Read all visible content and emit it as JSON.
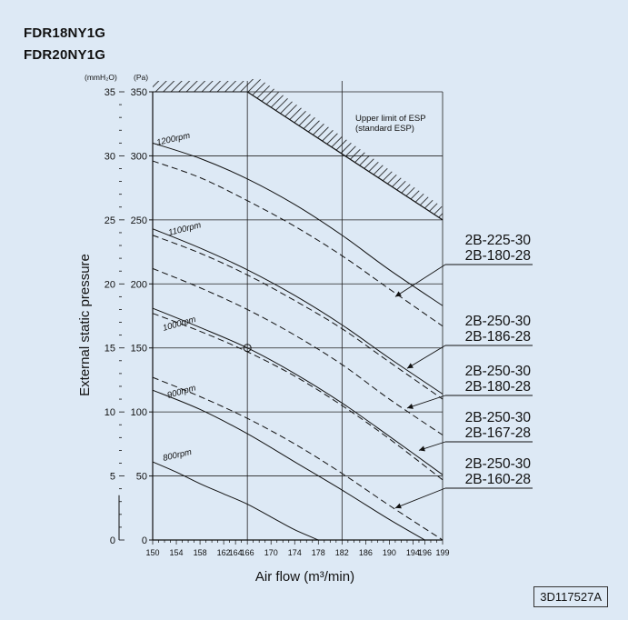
{
  "models": [
    "FDR18NY1G",
    "FDR20NY1G"
  ],
  "drawing_no": "3D117527A",
  "chart_data": {
    "type": "line",
    "xlabel": "Air flow (m³/min)",
    "ylabel": "External static pressure",
    "y_unit_mmH2O": "(mmH₂O)",
    "y_unit_Pa": "(Pa)",
    "xlim": [
      150,
      199
    ],
    "ylim_Pa": [
      0,
      350
    ],
    "ylim_mmH2O": [
      0,
      35
    ],
    "x_ticks": [
      150,
      154,
      158,
      162,
      164,
      166,
      170,
      174,
      178,
      182,
      186,
      190,
      194,
      196,
      199
    ],
    "x_ticks_major": [
      166,
      182
    ],
    "y_ticks_Pa": [
      0,
      50,
      100,
      150,
      200,
      250,
      300,
      350
    ],
    "y_ticks_mmH2O": [
      0,
      5,
      10,
      15,
      20,
      25,
      30,
      35
    ],
    "grid": true,
    "upper_limit": {
      "label_lines": [
        "Upper limit of ESP",
        "(standard ESP)"
      ],
      "points": [
        [
          166,
          350
        ],
        [
          199,
          250
        ]
      ],
      "hatched_top_left": [
        [
          150,
          350
        ],
        [
          166,
          350
        ]
      ]
    },
    "series": [
      {
        "name": "1200rpm",
        "style": "solid",
        "x": [
          150,
          158,
          166,
          174,
          182,
          190,
          199
        ],
        "y": [
          310,
          298,
          282,
          262,
          238,
          211,
          183
        ]
      },
      {
        "style": "dashed",
        "x": [
          150,
          158,
          166,
          174,
          182,
          190,
          199
        ],
        "y": [
          296,
          283,
          265,
          245,
          222,
          196,
          167
        ]
      },
      {
        "name": "1100rpm",
        "style": "solid",
        "x": [
          150,
          158,
          166,
          174,
          182,
          190,
          199
        ],
        "y": [
          243,
          228,
          211,
          191,
          168,
          142,
          114
        ]
      },
      {
        "style": "dashed",
        "x": [
          150,
          158,
          166,
          174,
          182,
          190,
          199
        ],
        "y": [
          238,
          224,
          207,
          187,
          165,
          139,
          110
        ]
      },
      {
        "style": "dashed",
        "x": [
          150,
          158,
          166,
          174,
          182,
          190,
          199
        ],
        "y": [
          212,
          197,
          180,
          160,
          137,
          110,
          82
        ]
      },
      {
        "name": "1000rpm",
        "style": "solid",
        "x": [
          150,
          158,
          166,
          174,
          182,
          190,
          199
        ],
        "y": [
          181,
          166,
          150,
          130,
          107,
          81,
          51
        ]
      },
      {
        "style": "dashed",
        "x": [
          150,
          158,
          166,
          174,
          182,
          190,
          199
        ],
        "y": [
          177,
          163,
          147,
          128,
          105,
          79,
          47
        ]
      },
      {
        "style": "dashed",
        "x": [
          150,
          158,
          166,
          174,
          182,
          190,
          199
        ],
        "y": [
          127,
          112,
          95,
          75,
          52,
          27,
          0
        ]
      },
      {
        "name": "900rpm",
        "style": "solid",
        "x": [
          150,
          158,
          166,
          174,
          182,
          190,
          196
        ],
        "y": [
          117,
          102,
          83,
          61,
          39,
          16,
          0
        ]
      },
      {
        "name": "800rpm",
        "style": "solid",
        "x": [
          150,
          154,
          158,
          162,
          166,
          170,
          174,
          178
        ],
        "y": [
          61,
          53,
          44,
          36,
          28,
          18,
          8,
          0
        ]
      }
    ],
    "marker": {
      "x": 166,
      "y": 150
    },
    "annotations": [
      {
        "lines": [
          "2B-225-30",
          "2B-180-28"
        ],
        "arrow_to": [
          191,
          190
        ]
      },
      {
        "lines": [
          "2B-250-30",
          "2B-186-28"
        ],
        "arrow_to": [
          193,
          134
        ]
      },
      {
        "lines": [
          "2B-250-30",
          "2B-180-28"
        ],
        "arrow_to": [
          193,
          103
        ]
      },
      {
        "lines": [
          "2B-250-30",
          "2B-167-28"
        ],
        "arrow_to": [
          195,
          70
        ]
      },
      {
        "lines": [
          "2B-250-30",
          "2B-160-28"
        ],
        "arrow_to": [
          191,
          25
        ]
      }
    ]
  }
}
